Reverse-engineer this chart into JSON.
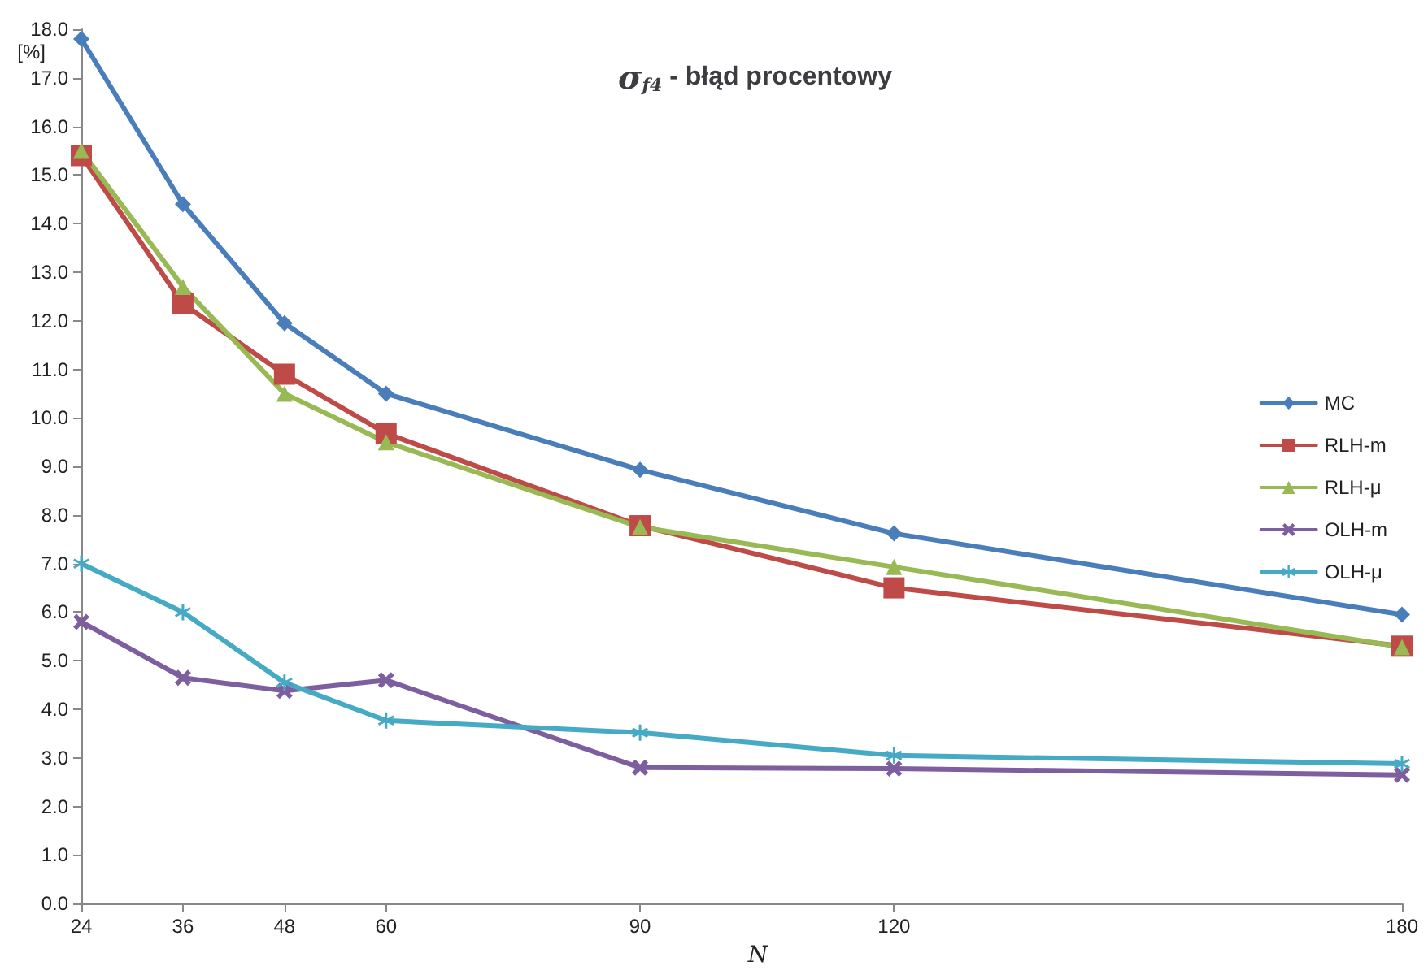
{
  "chart_data": {
    "type": "line",
    "title": "σ$_{f4}$ - błąd procentowy",
    "xlabel": "N",
    "ylabel": "[%]",
    "x": [
      24,
      36,
      48,
      60,
      90,
      120,
      180
    ],
    "xlim": [
      24,
      180
    ],
    "xticks": [
      24,
      36,
      48,
      60,
      90,
      120,
      180
    ],
    "ylim": [
      0,
      18
    ],
    "yticks": [
      {
        "value": 0,
        "label": "0.0"
      },
      {
        "value": 1,
        "label": "1.0"
      },
      {
        "value": 2,
        "label": "2.0"
      },
      {
        "value": 3,
        "label": "3.0"
      },
      {
        "value": 4,
        "label": "4.0"
      },
      {
        "value": 5,
        "label": "5.0"
      },
      {
        "value": 6,
        "label": "6.0"
      },
      {
        "value": 7,
        "label": "7.0"
      },
      {
        "value": 8,
        "label": "8.0"
      },
      {
        "value": 9,
        "label": "9.0"
      },
      {
        "value": 10,
        "label": "10.0"
      },
      {
        "value": 11,
        "label": "11.0"
      },
      {
        "value": 12,
        "label": "12.0"
      },
      {
        "value": 13,
        "label": "13.0"
      },
      {
        "value": 14,
        "label": "14.0"
      },
      {
        "value": 15,
        "label": "15.0"
      },
      {
        "value": 16,
        "label": "16.0"
      },
      {
        "value": 17,
        "label": "17.0"
      },
      {
        "value": 18,
        "label": "18.0"
      }
    ],
    "grid": false,
    "legend": "right",
    "line_style": "solid",
    "series": [
      {
        "name": "MC",
        "color": "#4a7ebb",
        "marker": "diamond",
        "values": [
          17.8,
          14.4,
          11.95,
          10.5,
          8.93,
          7.62,
          5.95
        ]
      },
      {
        "name": "RLH-m",
        "color": "#be4b48",
        "marker": "square",
        "values": [
          15.4,
          12.35,
          10.9,
          9.68,
          7.78,
          6.5,
          5.3
        ]
      },
      {
        "name": "RLH-μ",
        "color": "#98b954",
        "marker": "triangle",
        "values": [
          15.5,
          12.7,
          10.5,
          9.5,
          7.75,
          6.93,
          5.28
        ]
      },
      {
        "name": "OLH-m",
        "color": "#7d5fa0",
        "marker": "cross",
        "values": [
          5.8,
          4.65,
          4.38,
          4.6,
          2.8,
          2.78,
          2.65
        ]
      },
      {
        "name": "OLH-μ",
        "color": "#46aac5",
        "marker": "star",
        "values": [
          7.0,
          6.0,
          4.55,
          3.77,
          3.52,
          3.05,
          2.88
        ]
      }
    ]
  }
}
